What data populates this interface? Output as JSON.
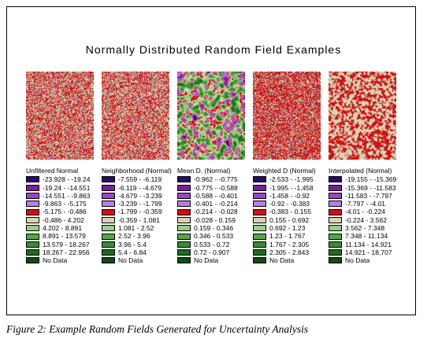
{
  "figure": {
    "title": "Normally Distributed Random Field Examples",
    "caption": "Figure 2: Example Random Fields Generated for Uncertainty Analysis"
  },
  "palette": [
    "#2a0a6b",
    "#7a1f9b",
    "#9c44c6",
    "#b97ee0",
    "#ce1212",
    "#d8d2b6",
    "#98cf82",
    "#5aa34a",
    "#3b8a35",
    "#226826",
    "#104a14",
    "#000000"
  ],
  "panels": [
    {
      "map_style": "noise-red-pale",
      "legend": {
        "title": "Unfiltered Normal",
        "entries": [
          "-23.928 - -19.24",
          "-19.24 - -14.551",
          "-14.551 - -9.863",
          "-9.863 - -5.175",
          "-5.175 - -0.486",
          "-0.486 - 4.202",
          "4.202 - 8.891",
          "8.891 - 13.579",
          "13.579 - 18.267",
          "18.267 - 22.956",
          "No Data"
        ]
      }
    },
    {
      "map_style": "noise-red-pale",
      "legend": {
        "title": "Neighborhood (Normal)",
        "entries": [
          "-7.559 - -6.119",
          "-6.119 - -4.679",
          "-4.679 - -3.239",
          "-3.239 - -1.799",
          "-1.799 - -0.359",
          "-0.359 - 1.081",
          "1.081 - 2.52",
          "2.52 - 3.96",
          "3.96 - 5.4",
          "5.4 - 6.84",
          "No Data"
        ]
      }
    },
    {
      "map_style": "smooth-green-purple",
      "legend": {
        "title": "Mean D. (Normal)",
        "entries": [
          "-0.962 - -0.775",
          "-0.775 - -0.588",
          "-0.588 - -0.401",
          "-0.401 - -0.214",
          "-0.214 - -0.028",
          "-0.028 - 0.159",
          "0.159 - 0.346",
          "0.346 - 0.533",
          "0.533 - 0.72",
          "0.72 - 0.907",
          "No Data"
        ]
      }
    },
    {
      "map_style": "noise-red-dense",
      "legend": {
        "title": "Weighted D (Normal)",
        "entries": [
          "-2.533 - -1.995",
          "-1.995 - -1.458",
          "-1.458 - -0.92",
          "-0.92 - -0.383",
          "-0.383 - 0.155",
          "0.155 - 0.692",
          "0.692 - 1.23",
          "1.23 - 1.767",
          "1.767 - 2.305",
          "2.305 - 2.843",
          "No Data"
        ]
      }
    },
    {
      "map_style": "blotchy-red-pale",
      "legend": {
        "title": "Interpolated (Normal)",
        "entries": [
          "-19.155 - -15.369",
          "-15.369 - -11.583",
          "-11.583 - -7.797",
          "-7.797 - -4.01",
          "-4.01 - -0.224",
          "-0.224 - 3.562",
          "3.562 - 7.348",
          "7.348 - 11.134",
          "11.134 - 14.921",
          "14.921 - 18.707",
          "No Data"
        ]
      }
    }
  ]
}
